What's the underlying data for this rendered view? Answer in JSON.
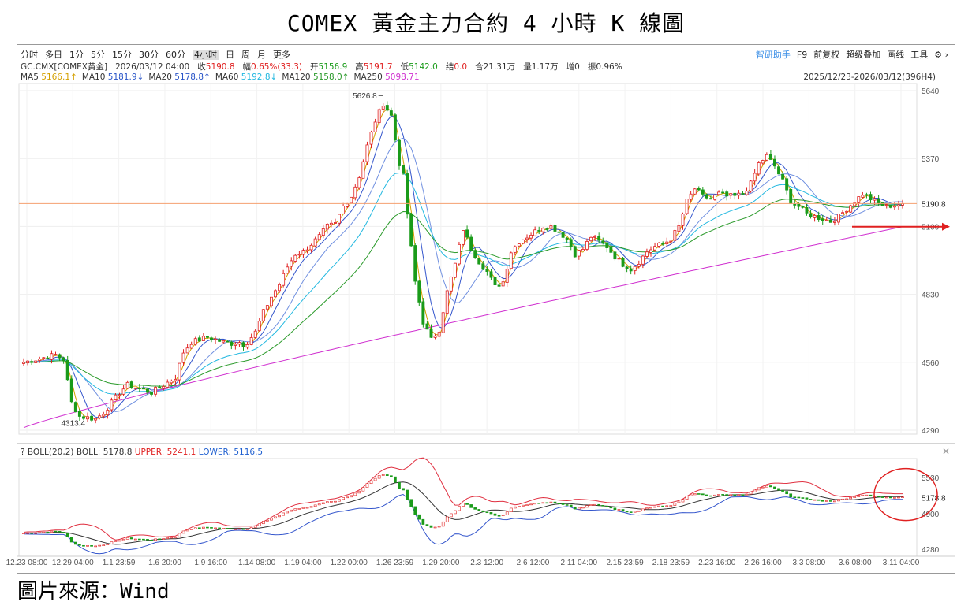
{
  "title": "COMEX 黃金主力合約 4 小時 K 線圖",
  "source": "圖片來源：Wind",
  "toolbar": {
    "periods": [
      "分时",
      "多日",
      "1分",
      "5分",
      "15分",
      "30分",
      "60分",
      "4小时",
      "日",
      "周",
      "月",
      "更多"
    ],
    "active": "4小时",
    "right_items": [
      "智研助手",
      "F9",
      "前复权",
      "超级叠加",
      "画线",
      "工具"
    ]
  },
  "info": {
    "symbol": "GC.CMX[COMEX黄金]",
    "datetime": "2026/03/12 04:00",
    "close_label": "收",
    "close": "5190.8",
    "change_label": "幅",
    "change": "0.65%(33.3)",
    "open_label": "开",
    "open": "5156.9",
    "high_label": "高",
    "high": "5191.7",
    "low_label": "低",
    "low": "5142.0",
    "settle_label": "结",
    "settle": "0.0",
    "oi_label": "合",
    "oi": "21.31万",
    "vol_label": "量",
    "vol": "1.17万",
    "inc_label": "增",
    "inc": "0",
    "amp_label": "振",
    "amp": "0.96%"
  },
  "ma_legend": [
    {
      "label": "MA5",
      "value": "5166.1↑",
      "color": "#d4a000"
    },
    {
      "label": "MA10",
      "value": "5181.9↓",
      "color": "#2a55c8"
    },
    {
      "label": "MA20",
      "value": "5178.8↑",
      "color": "#2a55c8"
    },
    {
      "label": "MA60",
      "value": "5192.8↓",
      "color": "#22b8e0"
    },
    {
      "label": "MA120",
      "value": "5158.0↑",
      "color": "#2a9a2a"
    },
    {
      "label": "MA250",
      "value": "5098.71",
      "color": "#d030d0"
    }
  ],
  "range_text": "2025/12/23-2026/03/12(396H4)",
  "boll_legend": {
    "prefix": "? BOLL(20,2)",
    "mid_label": "BOLL:",
    "mid": "5178.8",
    "upper_label": "UPPER:",
    "upper": "5241.1",
    "lower_label": "LOWER:",
    "lower": "5116.5"
  },
  "colors": {
    "up": "#e02020",
    "down": "#1a9b1a",
    "ma5": "#d4a000",
    "ma10": "#3355cc",
    "ma20": "#7090e0",
    "ma60": "#22b8e0",
    "ma120": "#2a9a2a",
    "ma250": "#d030d0",
    "boll_upper": "#e03040",
    "boll_mid": "#333333",
    "boll_lower": "#3355cc",
    "price_line": "#f5a070",
    "arrow": "#e02020",
    "circle": "#e02020"
  },
  "chart_data": [
    {
      "type": "candlestick",
      "ylim": [
        4290,
        5640
      ],
      "yticks": [
        5640,
        5370,
        5100,
        4830,
        4560,
        4290
      ],
      "y_tick_labels": [
        "5640",
        "5370",
        "5100",
        "4830",
        "4560",
        "4290"
      ],
      "xtick_labels": [
        "12.23 08:00",
        "12.29 04:00",
        "1.1 23:59",
        "1.6 20:00",
        "1.9 16:00",
        "1.14 08:00",
        "1.19 04:00",
        "1.22 00:00",
        "1.26 23:59",
        "1.29 20:00",
        "2.3 12:00",
        "2.6 12:00",
        "2.11 04:00",
        "2.15 23:59",
        "2.18 23:59",
        "2.23 16:00",
        "2.26 16:00",
        "3.3 08:00",
        "3.6 08:00",
        "3.11 04:00"
      ],
      "annotations": {
        "max": 5626.8,
        "max_label": "5626.8",
        "min": 4313.4,
        "min_label": "4313.4",
        "last_price": 5190.8,
        "last_price_label": "5190.8"
      },
      "close_path": [
        [
          0,
          4560
        ],
        [
          4,
          4575
        ],
        [
          8,
          4590
        ],
        [
          10,
          4570
        ],
        [
          12,
          4400
        ],
        [
          14,
          4345
        ],
        [
          16,
          4340
        ],
        [
          18,
          4335
        ],
        [
          20,
          4360
        ],
        [
          22,
          4400
        ],
        [
          24,
          4440
        ],
        [
          26,
          4470
        ],
        [
          28,
          4460
        ],
        [
          30,
          4450
        ],
        [
          32,
          4440
        ],
        [
          34,
          4460
        ],
        [
          36,
          4480
        ],
        [
          38,
          4500
        ],
        [
          40,
          4600
        ],
        [
          42,
          4640
        ],
        [
          44,
          4650
        ],
        [
          46,
          4660
        ],
        [
          48,
          4650
        ],
        [
          50,
          4640
        ],
        [
          52,
          4635
        ],
        [
          54,
          4640
        ],
        [
          55,
          4630
        ],
        [
          56,
          4640
        ],
        [
          58,
          4680
        ],
        [
          60,
          4760
        ],
        [
          62,
          4820
        ],
        [
          64,
          4870
        ],
        [
          66,
          4940
        ],
        [
          68,
          4990
        ],
        [
          70,
          5000
        ],
        [
          72,
          5030
        ],
        [
          74,
          5060
        ],
        [
          76,
          5100
        ],
        [
          78,
          5110
        ],
        [
          80,
          5180
        ],
        [
          82,
          5220
        ],
        [
          84,
          5300
        ],
        [
          86,
          5420
        ],
        [
          88,
          5520
        ],
        [
          90,
          5590
        ],
        [
          92,
          5540
        ],
        [
          94,
          5350
        ],
        [
          95,
          5300
        ],
        [
          96,
          5150
        ],
        [
          98,
          4880
        ],
        [
          100,
          4720
        ],
        [
          102,
          4650
        ],
        [
          104,
          4690
        ],
        [
          106,
          4840
        ],
        [
          108,
          4950
        ],
        [
          110,
          5090
        ],
        [
          112,
          5010
        ],
        [
          114,
          4960
        ],
        [
          116,
          4920
        ],
        [
          118,
          4860
        ],
        [
          120,
          4880
        ],
        [
          122,
          5000
        ],
        [
          124,
          5040
        ],
        [
          126,
          5060
        ],
        [
          128,
          5080
        ],
        [
          130,
          5100
        ],
        [
          132,
          5100
        ],
        [
          134,
          5080
        ],
        [
          136,
          5050
        ],
        [
          138,
          4990
        ],
        [
          140,
          5010
        ],
        [
          142,
          5060
        ],
        [
          144,
          5040
        ],
        [
          146,
          5020
        ],
        [
          148,
          4980
        ],
        [
          150,
          4950
        ],
        [
          152,
          4930
        ],
        [
          154,
          4960
        ],
        [
          156,
          5000
        ],
        [
          158,
          5020
        ],
        [
          160,
          5030
        ],
        [
          162,
          5050
        ],
        [
          164,
          5100
        ],
        [
          166,
          5200
        ],
        [
          168,
          5250
        ],
        [
          170,
          5220
        ],
        [
          172,
          5210
        ],
        [
          174,
          5230
        ],
        [
          176,
          5220
        ],
        [
          178,
          5220
        ],
        [
          180,
          5230
        ],
        [
          182,
          5270
        ],
        [
          184,
          5350
        ],
        [
          186,
          5380
        ],
        [
          188,
          5340
        ],
        [
          190,
          5280
        ],
        [
          192,
          5200
        ],
        [
          194,
          5180
        ],
        [
          196,
          5150
        ],
        [
          198,
          5140
        ],
        [
          200,
          5130
        ],
        [
          202,
          5120
        ],
        [
          204,
          5140
        ],
        [
          206,
          5170
        ],
        [
          208,
          5200
        ],
        [
          210,
          5230
        ],
        [
          212,
          5210
        ],
        [
          214,
          5190
        ],
        [
          216,
          5180
        ],
        [
          218,
          5185
        ],
        [
          220,
          5190.8
        ]
      ],
      "series": [
        {
          "name": "MA5",
          "value": 5166.1
        },
        {
          "name": "MA10",
          "value": 5181.9
        },
        {
          "name": "MA20",
          "value": 5178.8
        },
        {
          "name": "MA60",
          "value": 5192.8
        },
        {
          "name": "MA120",
          "value": 5158.0
        },
        {
          "name": "MA250",
          "value": 5098.71
        }
      ]
    },
    {
      "type": "line",
      "ylim": [
        4280,
        5530
      ],
      "yticks": [
        5530,
        4900,
        4280
      ],
      "y_tick_labels": [
        "5530",
        "4900",
        "4280"
      ],
      "last_value_label": "5178.8",
      "series": [
        {
          "name": "BOLL",
          "value": 5178.8
        },
        {
          "name": "UPPER",
          "value": 5241.1
        },
        {
          "name": "LOWER",
          "value": 5116.5
        }
      ]
    }
  ]
}
